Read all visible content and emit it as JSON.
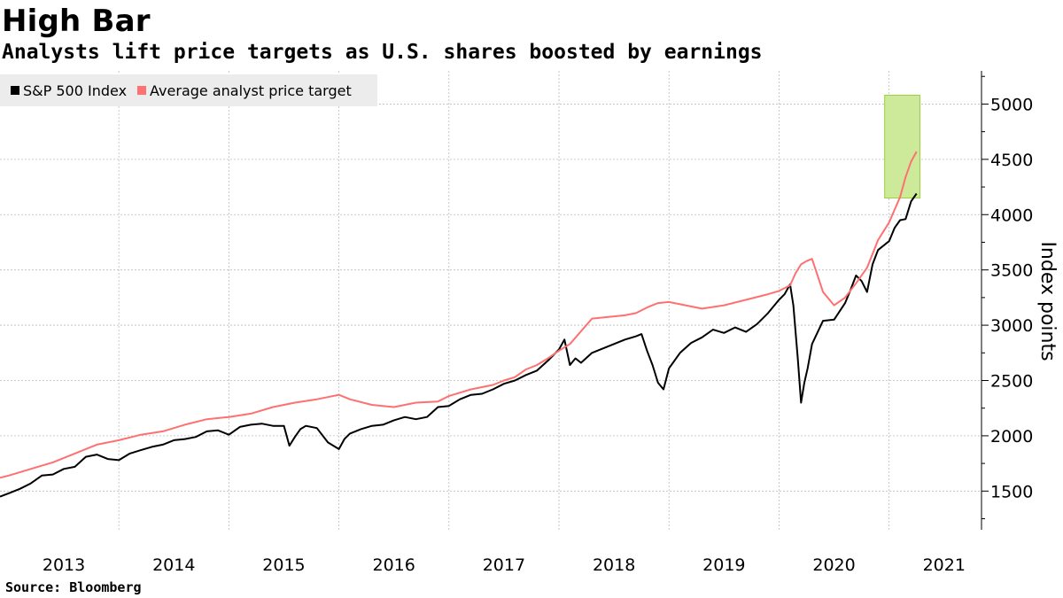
{
  "header": {
    "title": "High Bar",
    "subtitle": "Analysts lift price targets as U.S. shares boosted by earnings"
  },
  "source": "Source: Bloomberg",
  "colors": {
    "sp500": "#000000",
    "target": "#ff7070",
    "highlight_fill": "#ccea99",
    "highlight_stroke": "#9bd03a",
    "grid": "#bbbbbb"
  },
  "chart_data": {
    "type": "line",
    "ylabel": "Index points",
    "xlabel": "",
    "xlim": [
      2012.92,
      2021.84
    ],
    "ylim": [
      1150,
      5300
    ],
    "y_ticks": [
      1500,
      2000,
      2500,
      3000,
      3500,
      4000,
      4500,
      5000
    ],
    "x_tick_labels": [
      "2013",
      "2014",
      "2015",
      "2016",
      "2017",
      "2018",
      "2019",
      "2020",
      "2021"
    ],
    "legend_position": "top-left",
    "grid": true,
    "highlight_region": {
      "x_start": 2020.96,
      "x_end": 2021.28,
      "y_start": 4150,
      "y_end": 5080
    },
    "series": [
      {
        "name": "S&P 500 Index",
        "x": [
          2012.92,
          2013.0,
          2013.1,
          2013.2,
          2013.3,
          2013.4,
          2013.5,
          2013.6,
          2013.7,
          2013.8,
          2013.9,
          2014.0,
          2014.1,
          2014.2,
          2014.3,
          2014.4,
          2014.5,
          2014.6,
          2014.7,
          2014.8,
          2014.9,
          2015.0,
          2015.1,
          2015.2,
          2015.3,
          2015.4,
          2015.5,
          2015.55,
          2015.6,
          2015.65,
          2015.7,
          2015.8,
          2015.9,
          2016.0,
          2016.05,
          2016.1,
          2016.2,
          2016.3,
          2016.4,
          2016.5,
          2016.6,
          2016.7,
          2016.8,
          2016.9,
          2017.0,
          2017.1,
          2017.2,
          2017.3,
          2017.4,
          2017.5,
          2017.6,
          2017.7,
          2017.8,
          2017.9,
          2018.0,
          2018.05,
          2018.1,
          2018.15,
          2018.2,
          2018.3,
          2018.4,
          2018.5,
          2018.6,
          2018.7,
          2018.75,
          2018.8,
          2018.85,
          2018.9,
          2018.95,
          2019.0,
          2019.1,
          2019.2,
          2019.3,
          2019.4,
          2019.5,
          2019.6,
          2019.7,
          2019.8,
          2019.9,
          2020.0,
          2020.05,
          2020.1,
          2020.13,
          2020.17,
          2020.2,
          2020.23,
          2020.26,
          2020.3,
          2020.4,
          2020.5,
          2020.6,
          2020.65,
          2020.7,
          2020.75,
          2020.8,
          2020.85,
          2020.9,
          2021.0,
          2021.05,
          2021.1,
          2021.15,
          2021.2,
          2021.25
        ],
        "values": [
          1450,
          1480,
          1520,
          1570,
          1640,
          1650,
          1700,
          1720,
          1810,
          1830,
          1790,
          1780,
          1840,
          1870,
          1900,
          1920,
          1960,
          1970,
          1990,
          2040,
          2050,
          2010,
          2080,
          2100,
          2110,
          2090,
          2090,
          1910,
          1990,
          2060,
          2090,
          2070,
          1940,
          1880,
          1970,
          2020,
          2060,
          2090,
          2100,
          2140,
          2170,
          2150,
          2170,
          2260,
          2270,
          2330,
          2370,
          2380,
          2420,
          2470,
          2500,
          2550,
          2590,
          2680,
          2780,
          2870,
          2640,
          2700,
          2660,
          2750,
          2790,
          2830,
          2870,
          2900,
          2920,
          2770,
          2640,
          2480,
          2420,
          2610,
          2750,
          2840,
          2890,
          2960,
          2930,
          2980,
          2940,
          3010,
          3110,
          3230,
          3280,
          3370,
          3180,
          2700,
          2300,
          2480,
          2610,
          2830,
          3040,
          3050,
          3200,
          3320,
          3450,
          3400,
          3300,
          3550,
          3680,
          3760,
          3880,
          3950,
          3960,
          4120,
          4190
        ]
      },
      {
        "name": "Average analyst price target",
        "x": [
          2012.92,
          2013.0,
          2013.2,
          2013.4,
          2013.6,
          2013.8,
          2014.0,
          2014.2,
          2014.4,
          2014.6,
          2014.8,
          2015.0,
          2015.2,
          2015.4,
          2015.6,
          2015.8,
          2015.9,
          2016.0,
          2016.1,
          2016.3,
          2016.5,
          2016.7,
          2016.9,
          2017.0,
          2017.2,
          2017.4,
          2017.5,
          2017.6,
          2017.7,
          2017.8,
          2017.9,
          2018.0,
          2018.1,
          2018.3,
          2018.5,
          2018.6,
          2018.7,
          2018.8,
          2018.9,
          2019.0,
          2019.1,
          2019.3,
          2019.5,
          2019.7,
          2019.9,
          2020.0,
          2020.1,
          2020.15,
          2020.2,
          2020.25,
          2020.3,
          2020.4,
          2020.5,
          2020.6,
          2020.7,
          2020.8,
          2020.9,
          2021.0,
          2021.1,
          2021.15,
          2021.2,
          2021.25
        ],
        "values": [
          1620,
          1640,
          1700,
          1760,
          1840,
          1920,
          1960,
          2010,
          2040,
          2100,
          2150,
          2170,
          2200,
          2260,
          2300,
          2330,
          2350,
          2370,
          2330,
          2280,
          2260,
          2300,
          2310,
          2360,
          2420,
          2460,
          2500,
          2530,
          2600,
          2640,
          2700,
          2770,
          2830,
          3060,
          3080,
          3090,
          3110,
          3160,
          3200,
          3210,
          3190,
          3150,
          3180,
          3230,
          3280,
          3310,
          3360,
          3470,
          3550,
          3580,
          3600,
          3300,
          3180,
          3250,
          3380,
          3520,
          3770,
          3930,
          4160,
          4340,
          4480,
          4570
        ]
      }
    ]
  }
}
